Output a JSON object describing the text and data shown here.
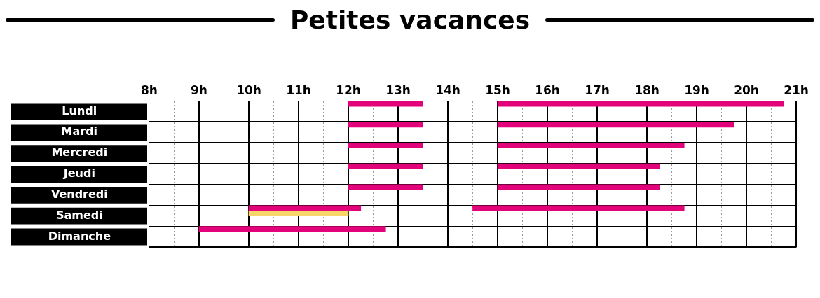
{
  "chart_data": {
    "type": "bar",
    "title": "Petites vacances",
    "orientation": "horizontal",
    "categories": [
      "Lundi",
      "Mardi",
      "Mercredi",
      "Jeudi",
      "Vendredi",
      "Samedi",
      "Dimanche"
    ],
    "series": [
      {
        "color": "#e2037a",
        "base": [
          12,
          12,
          12,
          12,
          12,
          10,
          9
        ],
        "values": [
          1.5,
          1.5,
          1.5,
          1.5,
          1.5,
          2.25,
          3.75
        ]
      },
      {
        "color": "#e2037a",
        "base": [
          15,
          15,
          15,
          15,
          15,
          14.5,
          null
        ],
        "values": [
          5.75,
          4.75,
          3.75,
          3.25,
          3.25,
          4.25,
          null
        ]
      },
      {
        "color": "#f8d66a",
        "base": [
          null,
          null,
          null,
          null,
          null,
          10,
          null
        ],
        "values": [
          null,
          null,
          null,
          null,
          null,
          2,
          null
        ]
      }
    ],
    "xlim": [
      8,
      21
    ],
    "xticks": [
      {
        "value": 8,
        "label": "8h"
      },
      {
        "value": 8.5,
        "label": null
      },
      {
        "value": 9,
        "label": "9h"
      },
      {
        "value": 9.5,
        "label": null
      },
      {
        "value": 10,
        "label": "10h"
      },
      {
        "value": 10.5,
        "label": null
      },
      {
        "value": 11,
        "label": "11h"
      },
      {
        "value": 11.5,
        "label": null
      },
      {
        "value": 12,
        "label": "12h"
      },
      {
        "value": 12.5,
        "label": null
      },
      {
        "value": 13,
        "label": "13h"
      },
      {
        "value": 13.5,
        "label": null
      },
      {
        "value": 14,
        "label": "14h"
      },
      {
        "value": 14.5,
        "label": null
      },
      {
        "value": 15,
        "label": "15h"
      },
      {
        "value": 15.5,
        "label": null
      },
      {
        "value": 16,
        "label": "16h"
      },
      {
        "value": 16.5,
        "label": null
      },
      {
        "value": 17,
        "label": "17h"
      },
      {
        "value": 17.5,
        "label": null
      },
      {
        "value": 18,
        "label": "18h"
      },
      {
        "value": 18.5,
        "label": null
      },
      {
        "value": 19,
        "label": "19h"
      },
      {
        "value": 19.5,
        "label": null
      },
      {
        "value": 20,
        "label": "20h"
      },
      {
        "value": 20.5,
        "label": null
      },
      {
        "value": 21,
        "label": "21h"
      }
    ],
    "grid": true
  }
}
